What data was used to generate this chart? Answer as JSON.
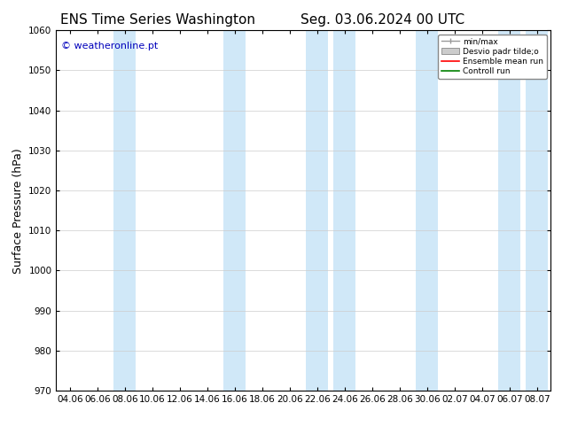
{
  "title_left": "ENS Time Series Washington",
  "title_right": "Seg. 03.06.2024 00 UTC",
  "ylabel": "Surface Pressure (hPa)",
  "watermark": "© weatheronline.pt",
  "watermark_color": "#0000bb",
  "ylim": [
    970,
    1060
  ],
  "yticks": [
    970,
    980,
    990,
    1000,
    1010,
    1020,
    1030,
    1040,
    1050,
    1060
  ],
  "xtick_labels": [
    "04.06",
    "06.06",
    "08.06",
    "10.06",
    "12.06",
    "14.06",
    "16.06",
    "18.06",
    "20.06",
    "22.06",
    "24.06",
    "26.06",
    "28.06",
    "30.06",
    "02.07",
    "04.07",
    "06.07",
    "08.07"
  ],
  "num_xticks": 18,
  "background_color": "#ffffff",
  "plot_bg_color": "#ffffff",
  "band_color": "#d0e8f8",
  "band_alpha": 1.0,
  "band_positions": [
    2,
    6,
    9,
    10,
    13,
    16,
    17
  ],
  "legend_entries": [
    "min/max",
    "Desvio padr tilde;o",
    "Ensemble mean run",
    "Controll run"
  ],
  "legend_colors": [
    "#999999",
    "#cccccc",
    "#ff0000",
    "#008000"
  ],
  "grid_color": "#cccccc",
  "tick_color": "#000000",
  "title_fontsize": 11,
  "axis_label_fontsize": 9,
  "tick_fontsize": 7.5
}
